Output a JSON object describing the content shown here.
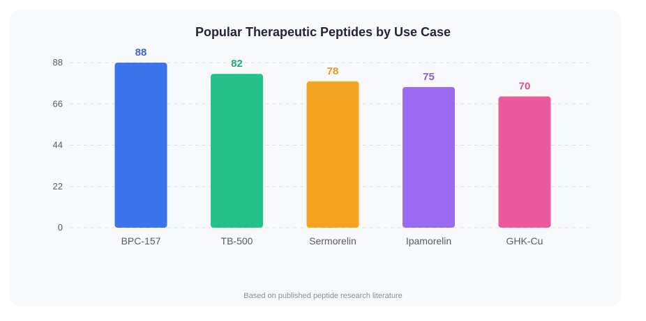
{
  "chart_data": {
    "type": "bar",
    "title": "Popular Therapeutic Peptides by Use Case",
    "categories": [
      "BPC-157",
      "TB-500",
      "Sermorelin",
      "Ipamorelin",
      "GHK-Cu"
    ],
    "values": [
      88,
      82,
      78,
      75,
      70
    ],
    "colors": [
      "#3b73ea",
      "#24c28a",
      "#f4a523",
      "#9a6bf2",
      "#ec5a9e"
    ],
    "label_colors": [
      "#3b66d6",
      "#21a975",
      "#e8971b",
      "#8a5de0",
      "#db4f8f"
    ],
    "yticks": [
      0,
      22,
      44,
      66,
      88
    ],
    "ylim": [
      0,
      88
    ],
    "grid": true,
    "xlabel": "",
    "ylabel": ""
  },
  "footnote": "Based on published peptide research literature"
}
